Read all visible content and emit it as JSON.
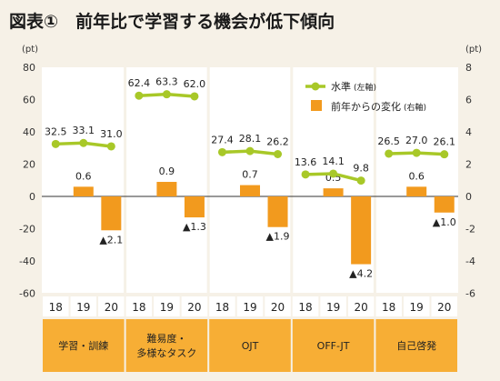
{
  "title": "図表①　前年比で学習する機会が低下傾向",
  "colors": {
    "line": "#a8c828",
    "bar": "#f29a1e",
    "category_band": "#f7ae35",
    "background": "#f6f1e7",
    "plot_background": "#ffffff",
    "year_cell": "#ffffff"
  },
  "chart_data": {
    "type": "bar+line",
    "left_axis": {
      "unit": "(pt)",
      "ylim": [
        -60,
        80
      ],
      "ticks": [
        "80",
        "60",
        "40",
        "20",
        "0",
        "-20",
        "-40",
        "-60"
      ]
    },
    "right_axis": {
      "unit": "(pt)",
      "ylim": [
        -6,
        8
      ],
      "ticks": [
        "8",
        "6",
        "4",
        "2",
        "0",
        "-2",
        "-4",
        "-6"
      ]
    },
    "legend": [
      {
        "label": "水準",
        "sub": "(左軸)",
        "kind": "line"
      },
      {
        "label": "前年からの変化",
        "sub": "(右軸)",
        "kind": "bar"
      }
    ],
    "legend_position": "top-right",
    "years": [
      "18",
      "19",
      "20"
    ],
    "groups": [
      {
        "name": "学習・訓練",
        "name_lines": [
          "学習・訓練"
        ],
        "level": [
          32.5,
          33.1,
          31.0
        ],
        "level_labels": [
          "32.5",
          "33.1",
          "31.0"
        ],
        "change": [
          null,
          0.6,
          -2.1
        ],
        "change_labels": [
          "",
          "0.6",
          "▲2.1"
        ]
      },
      {
        "name": "難易度・多様なタスク",
        "name_lines": [
          "難易度・",
          "多様なタスク"
        ],
        "level": [
          62.4,
          63.3,
          62.0
        ],
        "level_labels": [
          "62.4",
          "63.3",
          "62.0"
        ],
        "change": [
          null,
          0.9,
          -1.3
        ],
        "change_labels": [
          "",
          "0.9",
          "▲1.3"
        ]
      },
      {
        "name": "OJT",
        "name_lines": [
          "OJT"
        ],
        "level": [
          27.4,
          28.1,
          26.2
        ],
        "level_labels": [
          "27.4",
          "28.1",
          "26.2"
        ],
        "change": [
          null,
          0.7,
          -1.9
        ],
        "change_labels": [
          "",
          "0.7",
          "▲1.9"
        ]
      },
      {
        "name": "OFF-JT",
        "name_lines": [
          "OFF-JT"
        ],
        "level": [
          13.6,
          14.1,
          9.8
        ],
        "level_labels": [
          "13.6",
          "14.1",
          "9.8"
        ],
        "change": [
          null,
          0.5,
          -4.2
        ],
        "change_labels": [
          "",
          "0.5",
          "▲4.2"
        ]
      },
      {
        "name": "自己啓発",
        "name_lines": [
          "自己啓発"
        ],
        "level": [
          26.5,
          27.0,
          26.1
        ],
        "level_labels": [
          "26.5",
          "27.0",
          "26.1"
        ],
        "change": [
          null,
          0.6,
          -1.0
        ],
        "change_labels": [
          "",
          "0.6",
          "▲1.0"
        ]
      }
    ]
  }
}
